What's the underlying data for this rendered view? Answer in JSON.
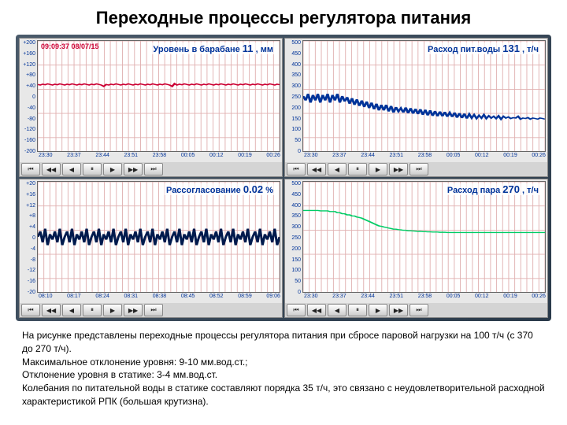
{
  "page_title": "Переходные процессы регулятора питания",
  "timestamp": "09:09:37 08/07/15",
  "panels": [
    {
      "id": "drum-level",
      "title": "Уровень в барабане",
      "value": "11",
      "unit": ", мм",
      "line_color": "#cc0033",
      "show_timestamp": true,
      "ymin": -200,
      "ymax": 200,
      "yticks": [
        "+200",
        "+160",
        "+120",
        "+80",
        "+40",
        "0",
        "-40",
        "-80",
        "-120",
        "-160",
        "-200"
      ],
      "xticks": [
        "23:30",
        "23:37",
        "23:44",
        "23:51",
        "23:58",
        "00:05",
        "00:12",
        "00:19",
        "00:26"
      ],
      "data": [
        42,
        40,
        43,
        41,
        44,
        42,
        40,
        43,
        41,
        44,
        42,
        40,
        43,
        41,
        44,
        42,
        40,
        43,
        41,
        44,
        42,
        40,
        43,
        41,
        44,
        42,
        40,
        35,
        42,
        40,
        43,
        41,
        44,
        42,
        40,
        43,
        41,
        44,
        42,
        40,
        43,
        41,
        44,
        42,
        40,
        43,
        41,
        44,
        42,
        40,
        43,
        41,
        44,
        42,
        40,
        35,
        45,
        40,
        43,
        41,
        44,
        42,
        40,
        43,
        41,
        44,
        42,
        40,
        43,
        41,
        44,
        42,
        40,
        43,
        41,
        44,
        42,
        40,
        43,
        41,
        44,
        42,
        40,
        43,
        41,
        44,
        42,
        40,
        43,
        41,
        44,
        42,
        40,
        43,
        41,
        44,
        42,
        40,
        43,
        41
      ]
    },
    {
      "id": "feedwater-flow",
      "title": "Расход пит.воды",
      "value": "131",
      "unit": ", т/ч",
      "line_color": "#003399",
      "show_timestamp": false,
      "ymin": 0,
      "ymax": 500,
      "yticks": [
        "500",
        "450",
        "400",
        "350",
        "300",
        "250",
        "200",
        "150",
        "100",
        "50",
        "0"
      ],
      "xticks": [
        "23:30",
        "23:37",
        "23:44",
        "23:51",
        "23:58",
        "00:05",
        "00:12",
        "00:19",
        "00:26"
      ],
      "data": [
        250,
        230,
        260,
        220,
        255,
        230,
        260,
        220,
        255,
        230,
        260,
        220,
        255,
        230,
        260,
        220,
        250,
        225,
        245,
        215,
        240,
        210,
        235,
        205,
        230,
        200,
        225,
        195,
        220,
        190,
        215,
        185,
        210,
        185,
        210,
        180,
        205,
        175,
        200,
        180,
        195,
        175,
        198,
        172,
        195,
        170,
        192,
        168,
        190,
        165,
        188,
        162,
        185,
        160,
        182,
        158,
        180,
        158,
        178,
        156,
        175,
        155,
        175,
        152,
        172,
        150,
        170,
        148,
        168,
        150,
        165,
        148,
        162,
        150,
        165,
        148,
        160,
        150,
        158,
        148,
        160,
        145,
        158,
        150,
        155,
        148,
        152,
        150,
        158,
        145,
        150,
        148,
        152,
        145,
        150,
        148,
        145,
        150,
        148,
        145
      ]
    },
    {
      "id": "mismatch",
      "title": "Рассогласование",
      "value": "0.02",
      "unit": "%",
      "line_color": "#001a4d",
      "show_timestamp": false,
      "ymin": -20,
      "ymax": 20,
      "yticks": [
        "+20",
        "+16",
        "+12",
        "+8",
        "+4",
        "0",
        "-4",
        "-8",
        "-12",
        "-16",
        "-20"
      ],
      "xticks": [
        "08:10",
        "08:17",
        "08:24",
        "08:31",
        "08:38",
        "08:45",
        "08:52",
        "08:59",
        "09:06"
      ],
      "data": [
        0,
        2,
        -2,
        3,
        -3,
        1,
        -1,
        2,
        -2,
        3,
        -3,
        0,
        2,
        -2,
        3,
        -3,
        1,
        -1,
        2,
        -2,
        3,
        -3,
        0,
        2,
        -2,
        3,
        -3,
        1,
        -1,
        2,
        -2,
        3,
        -3,
        0,
        2,
        -2,
        3,
        -3,
        1,
        -1,
        2,
        -2,
        3,
        -3,
        0,
        2,
        -2,
        3,
        -3,
        1,
        -1,
        2,
        -2,
        3,
        -3,
        0,
        2,
        -2,
        3,
        -3,
        1,
        -1,
        2,
        -2,
        3,
        -3,
        0,
        2,
        -2,
        3,
        -3,
        1,
        -1,
        2,
        -2,
        3,
        -3,
        0,
        2,
        -2,
        3,
        -3,
        1,
        -1,
        2,
        -2,
        3,
        -3,
        0,
        2,
        -2,
        3,
        -3,
        1,
        -1,
        2,
        -2,
        3,
        -3,
        0
      ]
    },
    {
      "id": "steam-flow",
      "title": "Расход пара",
      "value": "270",
      "unit": ", т/ч",
      "line_color": "#00cc66",
      "show_timestamp": false,
      "ymin": 0,
      "ymax": 500,
      "yticks": [
        "500",
        "450",
        "400",
        "350",
        "300",
        "250",
        "200",
        "150",
        "100",
        "50",
        "0"
      ],
      "xticks": [
        "23:30",
        "23:37",
        "23:44",
        "23:51",
        "23:58",
        "00:05",
        "00:12",
        "00:19",
        "00:26"
      ],
      "data": [
        370,
        370,
        370,
        370,
        370,
        370,
        370,
        368,
        368,
        368,
        368,
        365,
        365,
        365,
        360,
        360,
        355,
        355,
        350,
        350,
        345,
        345,
        340,
        338,
        335,
        330,
        325,
        320,
        315,
        310,
        305,
        300,
        298,
        295,
        293,
        290,
        288,
        285,
        285,
        283,
        282,
        280,
        280,
        278,
        278,
        277,
        276,
        275,
        275,
        274,
        274,
        273,
        273,
        272,
        272,
        272,
        271,
        271,
        271,
        270,
        270,
        270,
        270,
        270,
        270,
        270,
        270,
        270,
        270,
        270,
        270,
        270,
        270,
        270,
        270,
        270,
        270,
        270,
        270,
        270,
        270,
        270,
        270,
        270,
        270,
        270,
        270,
        270,
        270,
        270,
        270,
        270,
        270,
        270,
        270,
        270,
        270,
        270,
        270,
        270
      ]
    }
  ],
  "grid_color": "#e0b0b0",
  "controls": [
    "⏮",
    "◀◀",
    "◀",
    "⏸",
    "▶",
    "▶▶",
    "⏭"
  ],
  "caption_lines": [
    "На рисунке представлены переходные процессы регулятора питания при сбросе паровой нагрузки на 100 т/ч (с 370 до 270 т/ч).",
    "Максимальное отклонение уровня:  9-10 мм.вод.ст.;",
    "Отклонение уровня в статике:            3-4 мм.вод.ст.",
    "Колебания по питательной воды в статике составляют порядка 35 т/ч, это связано с неудовлетворительной расходной характеристикой РПК (большая крутизна)."
  ]
}
